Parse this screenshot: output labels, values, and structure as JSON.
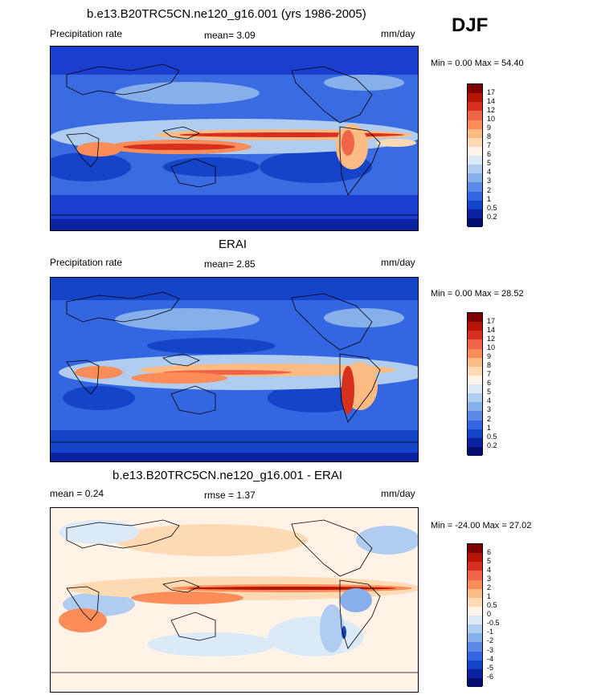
{
  "season": "DJF",
  "panels": [
    {
      "title": "b.e13.B20TRC5CN.ne120_g16.001 (yrs 1986-2005)",
      "left_label": "Precipitation rate",
      "mean_text": "mean=   3.09",
      "units": "mm/day",
      "minmax": "Min =   0.00 Max =  54.40",
      "levels": [
        "17",
        "14",
        "12",
        "10",
        "9",
        "8",
        "7",
        "6",
        "5",
        "4",
        "3",
        "2",
        "1",
        "0.5",
        "0.2"
      ],
      "colors": [
        "#7f0000",
        "#b51505",
        "#d7301f",
        "#ef6548",
        "#fc8d59",
        "#fdbb84",
        "#fdd9b4",
        "#fff2e6",
        "#dceaf8",
        "#b0cdf0",
        "#87b0ea",
        "#5a8ae6",
        "#3366e0",
        "#1544c8",
        "#0a22a0",
        "#020e70"
      ]
    },
    {
      "title": "ERAI",
      "left_label": "Precipitation rate",
      "mean_text": "mean=   2.85",
      "units": "mm/day",
      "minmax": "Min =   0.00 Max =  28.52",
      "levels": [
        "17",
        "14",
        "12",
        "10",
        "9",
        "8",
        "7",
        "6",
        "5",
        "4",
        "3",
        "2",
        "1",
        "0.5",
        "0.2"
      ],
      "colors": [
        "#7f0000",
        "#b51505",
        "#d7301f",
        "#ef6548",
        "#fc8d59",
        "#fdbb84",
        "#fdd9b4",
        "#fff2e6",
        "#dceaf8",
        "#b0cdf0",
        "#87b0ea",
        "#5a8ae6",
        "#3366e0",
        "#1544c8",
        "#0a22a0",
        "#020e70"
      ]
    },
    {
      "title": "b.e13.B20TRC5CN.ne120_g16.001 - ERAI",
      "left_label": "mean =   0.24",
      "mean_text": "rmse =   1.37",
      "units": "mm/day",
      "minmax": "Min = -24.00 Max =  27.02",
      "levels": [
        "6",
        "5",
        "4",
        "3",
        "2",
        "1",
        "0.5",
        "0",
        "-0.5",
        "-1",
        "-2",
        "-3",
        "-4",
        "-5",
        "-6"
      ],
      "colors": [
        "#7f0000",
        "#b51505",
        "#d7301f",
        "#ef6548",
        "#fc8d59",
        "#fdbb84",
        "#fdd9b4",
        "#fff2e6",
        "#dceaf8",
        "#b0cdf0",
        "#87b0ea",
        "#5a8ae6",
        "#3366e0",
        "#1544c8",
        "#0a22a0",
        "#020e70"
      ]
    }
  ]
}
